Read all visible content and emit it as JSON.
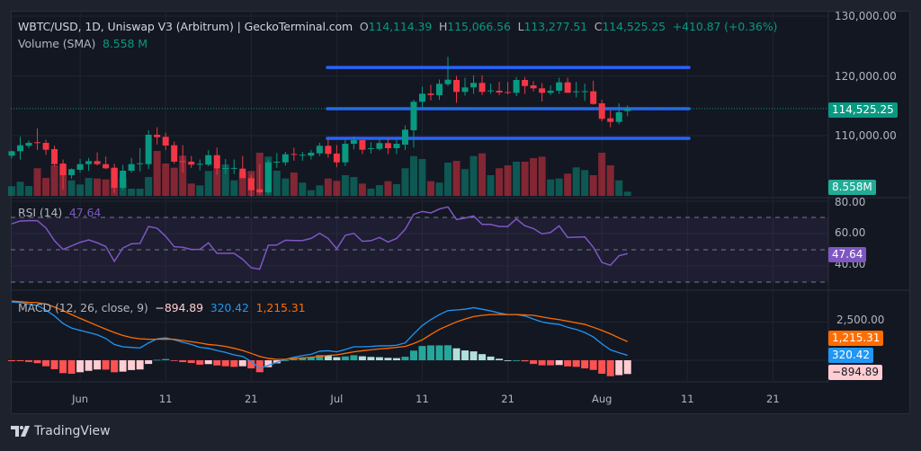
{
  "header": {
    "symbol_line": "WBTC/USD, 1D, Uniswap V3 (Arbitrum) | GeckoTerminal.com",
    "open_label": "O",
    "open": "114,114.39",
    "high_label": "H",
    "high": "115,066.56",
    "low_label": "L",
    "low": "113,277.51",
    "close_label": "C",
    "close": "114,525.25",
    "change": "+410.87 (+0.36%)",
    "volume_label": "Volume (SMA)",
    "volume": "8.558 M"
  },
  "rsi_legend": {
    "label": "RSI (14)",
    "value": "47.64"
  },
  "macd_legend": {
    "label": "MACD (12, 26, close, 9)",
    "histogram": "−894.89",
    "macd": "320.42",
    "signal": "1,215.31"
  },
  "price_axis": {
    "ticks": [
      "130,000.00",
      "120,000.00",
      "110,000.00"
    ],
    "tick_values": [
      130000,
      120000,
      110000
    ],
    "last_price": "114,525.25",
    "last_volume": "8.558M"
  },
  "rsi_axis": {
    "ticks": [
      "80.00",
      "60.00",
      "40.00"
    ],
    "tick_values": [
      80,
      60,
      40
    ],
    "last": "47.64"
  },
  "macd_axis": {
    "ticks": [
      "2,500.00"
    ],
    "tick_values": [
      2500
    ],
    "signal_badge": "1,215.31",
    "macd_badge": "320.42",
    "hist_badge": "−894.89"
  },
  "time_axis": [
    {
      "label": "Jun",
      "date": "Jun 1"
    },
    {
      "label": "11",
      "date": "Jun 11"
    },
    {
      "label": "21",
      "date": "Jun 21"
    },
    {
      "label": "Jul",
      "date": "Jul 1"
    },
    {
      "label": "11",
      "date": "Jul 11"
    },
    {
      "label": "21",
      "date": "Jul 21"
    },
    {
      "label": "Aug",
      "date": "Aug 1"
    },
    {
      "label": "11",
      "date": "Aug 11"
    },
    {
      "label": "21",
      "date": "Aug 21"
    }
  ],
  "branding": {
    "name": "TradingView"
  },
  "colors": {
    "up": "#089981",
    "down": "#f23645",
    "level_line": "#2962ff",
    "rsi": "#7e57c2",
    "macd": "#2196f3",
    "signal": "#ff6d00",
    "hist_up_strong": "#26a69a",
    "hist_up_weak": "#b2dfdb",
    "hist_down_strong": "#ff5252",
    "hist_down_weak": "#ffcdd2"
  },
  "chart_data": {
    "type": "candlestick",
    "interval": "1D",
    "first_date": "May 24",
    "price_range": [
      99000,
      131000
    ],
    "horizontal_levels": [
      121400,
      114500,
      109550
    ],
    "ohlc": [
      [
        106640,
        107500,
        106200,
        107390
      ],
      [
        107390,
        109800,
        106000,
        108390
      ],
      [
        108300,
        109200,
        107900,
        108790
      ],
      [
        108900,
        111200,
        107600,
        108750
      ],
      [
        108790,
        109300,
        106800,
        107640
      ],
      [
        107740,
        108300,
        104900,
        105230
      ],
      [
        105330,
        106000,
        101000,
        103380
      ],
      [
        103380,
        104500,
        102800,
        104380
      ],
      [
        104280,
        106100,
        103800,
        105230
      ],
      [
        105230,
        106300,
        104100,
        105740
      ],
      [
        105740,
        107200,
        105000,
        105230
      ],
      [
        105230,
        106500,
        104400,
        104530
      ],
      [
        104630,
        105300,
        100400,
        101270
      ],
      [
        101270,
        105100,
        100900,
        104130
      ],
      [
        104130,
        106300,
        103800,
        105230
      ],
      [
        105330,
        107900,
        104000,
        105380
      ],
      [
        105230,
        110900,
        104400,
        110150
      ],
      [
        110150,
        111400,
        108500,
        109740
      ],
      [
        109800,
        110500,
        107600,
        108340
      ],
      [
        108390,
        109000,
        105300,
        105640
      ],
      [
        105740,
        108400,
        103800,
        105640
      ],
      [
        105640,
        106600,
        104600,
        105140
      ],
      [
        105230,
        106000,
        104200,
        105280
      ],
      [
        105140,
        107600,
        104900,
        106730
      ],
      [
        106730,
        108000,
        103500,
        104480
      ],
      [
        104530,
        106100,
        103600,
        104580
      ],
      [
        104530,
        106000,
        103600,
        104600
      ],
      [
        104480,
        106600,
        103000,
        102880
      ],
      [
        102880,
        103500,
        99800,
        100870
      ],
      [
        101020,
        105200,
        100200,
        100520
      ],
      [
        100520,
        106000,
        100200,
        105530
      ],
      [
        105480,
        107100,
        104600,
        105640
      ],
      [
        105530,
        107300,
        105000,
        106880
      ],
      [
        106940,
        108000,
        105800,
        106790
      ],
      [
        106700,
        107300,
        105800,
        106800
      ],
      [
        106640,
        107600,
        106000,
        107140
      ],
      [
        107030,
        108800,
        106600,
        108300
      ],
      [
        108300,
        109400,
        106300,
        106940
      ],
      [
        107000,
        108400,
        104700,
        105530
      ],
      [
        105530,
        109300,
        104900,
        108640
      ],
      [
        108640,
        109900,
        107700,
        109240
      ],
      [
        109240,
        109300,
        106900,
        107640
      ],
      [
        107800,
        108900,
        107000,
        107900
      ],
      [
        107790,
        109300,
        107500,
        108750
      ],
      [
        108750,
        109500,
        106900,
        107890
      ],
      [
        107890,
        109300,
        106900,
        108640
      ],
      [
        108490,
        111700,
        107600,
        111000
      ],
      [
        110900,
        116000,
        108000,
        115670
      ],
      [
        115670,
        118200,
        114700,
        117020
      ],
      [
        117050,
        118500,
        115900,
        116810
      ],
      [
        116770,
        119400,
        116000,
        118680
      ],
      [
        118620,
        123200,
        118300,
        119370
      ],
      [
        119320,
        120000,
        115500,
        117320
      ],
      [
        117320,
        119700,
        116700,
        118070
      ],
      [
        118080,
        120100,
        117000,
        118830
      ],
      [
        118830,
        120100,
        116800,
        117320
      ],
      [
        117500,
        118700,
        117000,
        117560
      ],
      [
        117520,
        119000,
        116800,
        117220
      ],
      [
        117300,
        119000,
        116900,
        117260
      ],
      [
        117170,
        119800,
        116600,
        119320
      ],
      [
        119320,
        119800,
        117000,
        118310
      ],
      [
        118420,
        119100,
        117400,
        117920
      ],
      [
        117920,
        118800,
        115700,
        117170
      ],
      [
        117170,
        118400,
        116800,
        117520
      ],
      [
        117520,
        119700,
        117000,
        118920
      ],
      [
        118920,
        119700,
        117200,
        117170
      ],
      [
        117370,
        119000,
        116400,
        117420
      ],
      [
        117400,
        118700,
        115800,
        117440
      ],
      [
        117420,
        119200,
        115200,
        115300
      ],
      [
        115410,
        116000,
        112400,
        112810
      ],
      [
        112900,
        114200,
        111400,
        112300
      ],
      [
        112300,
        115400,
        111900,
        113910
      ],
      [
        114114.39,
        115066.56,
        113277.51,
        114525.25
      ]
    ],
    "volume_millions": [
      19.5,
      28.6,
      20,
      55.9,
      36.4,
      61.9,
      61.9,
      31.5,
      23.1,
      36.4,
      35.1,
      33.3,
      55.9,
      37.7,
      14.6,
      14.6,
      38.2,
      91,
      65.5,
      57,
      81.4,
      24.9,
      21.3,
      50.4,
      54.1,
      63.7,
      31.5,
      47.3,
      50.4,
      87.4,
      79.5,
      51,
      35.1,
      47.3,
      26.8,
      11.5,
      21.3,
      35.1,
      30.4,
      41.9,
      38.2,
      24.9,
      14.6,
      21.8,
      29.7,
      23.7,
      55.9,
      80.6,
      74.6,
      29.7,
      26.8,
      67.3,
      71,
      54.1,
      80.6,
      86.1,
      41.9,
      55.9,
      61.9,
      69.2,
      69.2,
      76.4,
      79.5,
      33.3,
      35.1,
      45,
      57.7,
      52.2,
      41.9,
      87.4,
      61.9,
      31.5,
      8.558
    ],
    "rsi": {
      "period": 14,
      "range": [
        20,
        85
      ],
      "levels": [
        70,
        50,
        30
      ],
      "values": [
        66,
        67.8,
        68,
        68,
        63.5,
        55.6,
        50.2,
        52.4,
        54.6,
        56.1,
        54.3,
        52,
        42.8,
        51.1,
        53.7,
        53.9,
        64.4,
        63.3,
        58.3,
        51.9,
        51.5,
        50.2,
        50.2,
        54.3,
        47.8,
        47.8,
        47.8,
        44.1,
        38.9,
        38,
        52.8,
        53,
        55.9,
        55.7,
        55.7,
        57,
        60.2,
        57,
        50.6,
        58.9,
        60.2,
        55.2,
        55.6,
        57.6,
        54.8,
        57,
        62.6,
        71.9,
        73.7,
        72.8,
        75.2,
        76.5,
        68.7,
        69.6,
        70.9,
        65.7,
        65.7,
        64.4,
        64.4,
        69.1,
        64.8,
        63.1,
        59.8,
        60.7,
        64.8,
        57.6,
        57.8,
        58,
        51.5,
        42.2,
        40.4,
        46.3,
        47.64
      ]
    },
    "macd": {
      "fast": 12,
      "slow": 26,
      "signal_period": 9,
      "range": [
        -1400,
        4300
      ],
      "macd": [
        3800,
        3760,
        3670,
        3570,
        3280,
        2890,
        2400,
        2100,
        1950,
        1810,
        1660,
        1420,
        1030,
        880,
        840,
        800,
        1130,
        1400,
        1460,
        1330,
        1170,
        1030,
        840,
        780,
        640,
        510,
        350,
        250,
        -80,
        -530,
        -330,
        -140,
        60,
        200,
        310,
        390,
        590,
        620,
        550,
        700,
        880,
        880,
        900,
        940,
        940,
        980,
        1130,
        1720,
        2260,
        2650,
        2980,
        3240,
        3280,
        3330,
        3430,
        3330,
        3220,
        3080,
        2980,
        2980,
        2890,
        2690,
        2500,
        2400,
        2340,
        2150,
        2010,
        1810,
        1520,
        1070,
        680,
        490,
        320.42
      ],
      "signal": [
        3860,
        3820,
        3780,
        3760,
        3670,
        3470,
        3240,
        2980,
        2730,
        2500,
        2260,
        2030,
        1810,
        1620,
        1480,
        1400,
        1370,
        1370,
        1380,
        1370,
        1290,
        1210,
        1130,
        1030,
        980,
        900,
        780,
        640,
        450,
        250,
        120,
        60,
        60,
        120,
        160,
        200,
        250,
        310,
        350,
        450,
        550,
        620,
        680,
        740,
        780,
        840,
        900,
        1090,
        1330,
        1680,
        2010,
        2260,
        2500,
        2690,
        2850,
        2930,
        2980,
        2980,
        2980,
        2980,
        2960,
        2930,
        2830,
        2730,
        2650,
        2550,
        2440,
        2340,
        2150,
        1950,
        1720,
        1460,
        1215.31
      ]
    }
  }
}
